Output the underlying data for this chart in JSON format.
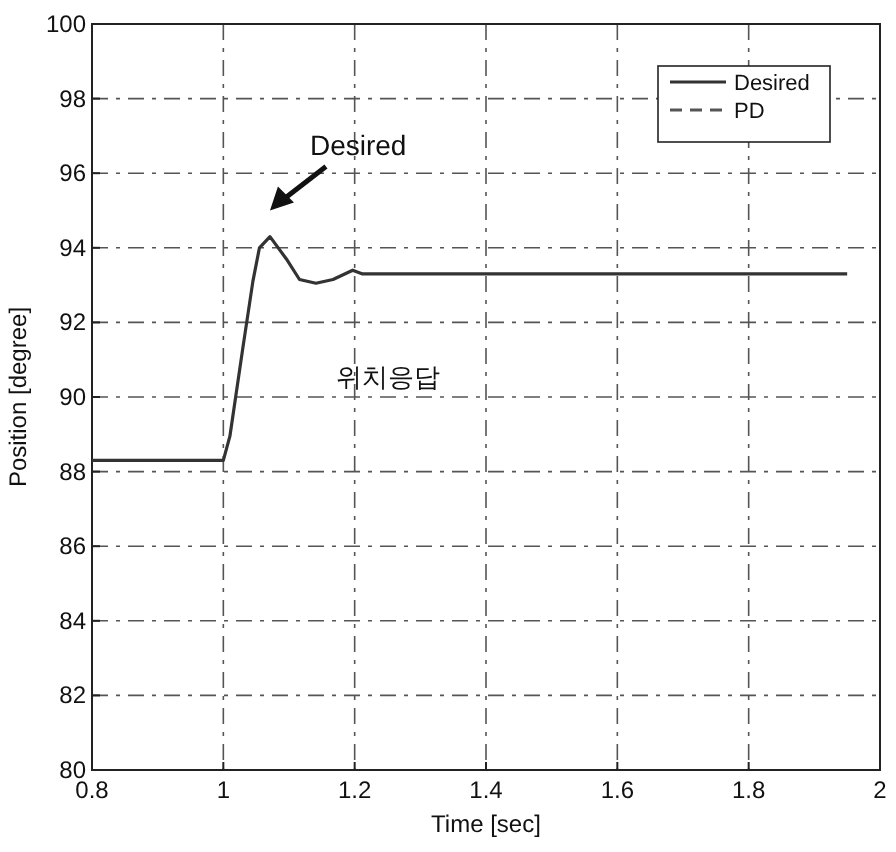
{
  "chart_data": {
    "type": "line",
    "xlabel": "Time [sec]",
    "ylabel": "Position [degree]",
    "x": [
      0.8,
      1.0,
      1.01,
      1.03,
      1.045,
      1.055,
      1.071,
      1.096,
      1.116,
      1.141,
      1.167,
      1.197,
      1.212,
      1.4,
      1.6,
      1.8,
      1.95
    ],
    "series": [
      {
        "name": "Desired",
        "color": "#333333",
        "line_style": "solid",
        "values": [
          88.3,
          88.3,
          88.95,
          91.35,
          93.1,
          94.0,
          94.3,
          93.7,
          93.15,
          93.05,
          93.15,
          93.4,
          93.3,
          93.3,
          93.3,
          93.3,
          93.3
        ]
      },
      {
        "name": "PD",
        "color": "#555555",
        "line_style": "dashed",
        "values": [
          null,
          null,
          null,
          null,
          null,
          null,
          null,
          null,
          null,
          null,
          null,
          null,
          null,
          null,
          null,
          null,
          null
        ]
      }
    ],
    "xlim": [
      0.8,
      2.0
    ],
    "xticks": [
      0.8,
      1,
      1.2,
      1.4,
      1.6,
      1.8,
      2
    ],
    "ylim": [
      80,
      100
    ],
    "yticks": [
      80,
      82,
      84,
      86,
      88,
      90,
      92,
      94,
      96,
      98,
      100
    ],
    "grid": true,
    "legend": "top right",
    "marker": "none",
    "annotations": [
      "Desired",
      "위치응답"
    ]
  }
}
